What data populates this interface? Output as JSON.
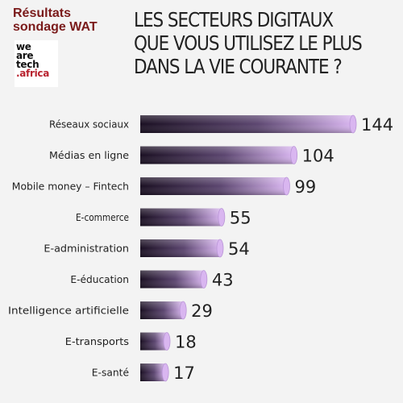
{
  "header": {
    "survey_line1": "Résultats",
    "survey_line2": "sondage WAT",
    "logo_lines": [
      "we",
      "are",
      "tech",
      ".africa"
    ],
    "title_lines": [
      "LES SECTEURS DIGITAUX",
      "QUE VOUS UTILISEZ LE PLUS",
      "DANS LA VIE COURANTE ?"
    ]
  },
  "colors": {
    "bar_light": "#d9b6f0",
    "bar_dark": "#1a0f22",
    "title": "#222222",
    "survey_text": "#7a1a1a"
  },
  "chart_data": {
    "type": "bar",
    "orientation": "horizontal",
    "title": "LES SECTEURS DIGITAUX QUE VOUS UTILISEZ LE PLUS DANS LA VIE COURANTE ?",
    "categories": [
      "Réseaux sociaux",
      "Médias en ligne",
      "Mobile money – Fintech",
      "E-commerce",
      "E-administration",
      "E-éducation",
      "Intelligence artificielle",
      "E-transports",
      "E-santé"
    ],
    "values": [
      144,
      104,
      99,
      55,
      54,
      43,
      29,
      18,
      17
    ],
    "xlabel": "",
    "ylabel": "",
    "xlim": [
      0,
      144
    ],
    "grid": false,
    "data_labels": true
  }
}
